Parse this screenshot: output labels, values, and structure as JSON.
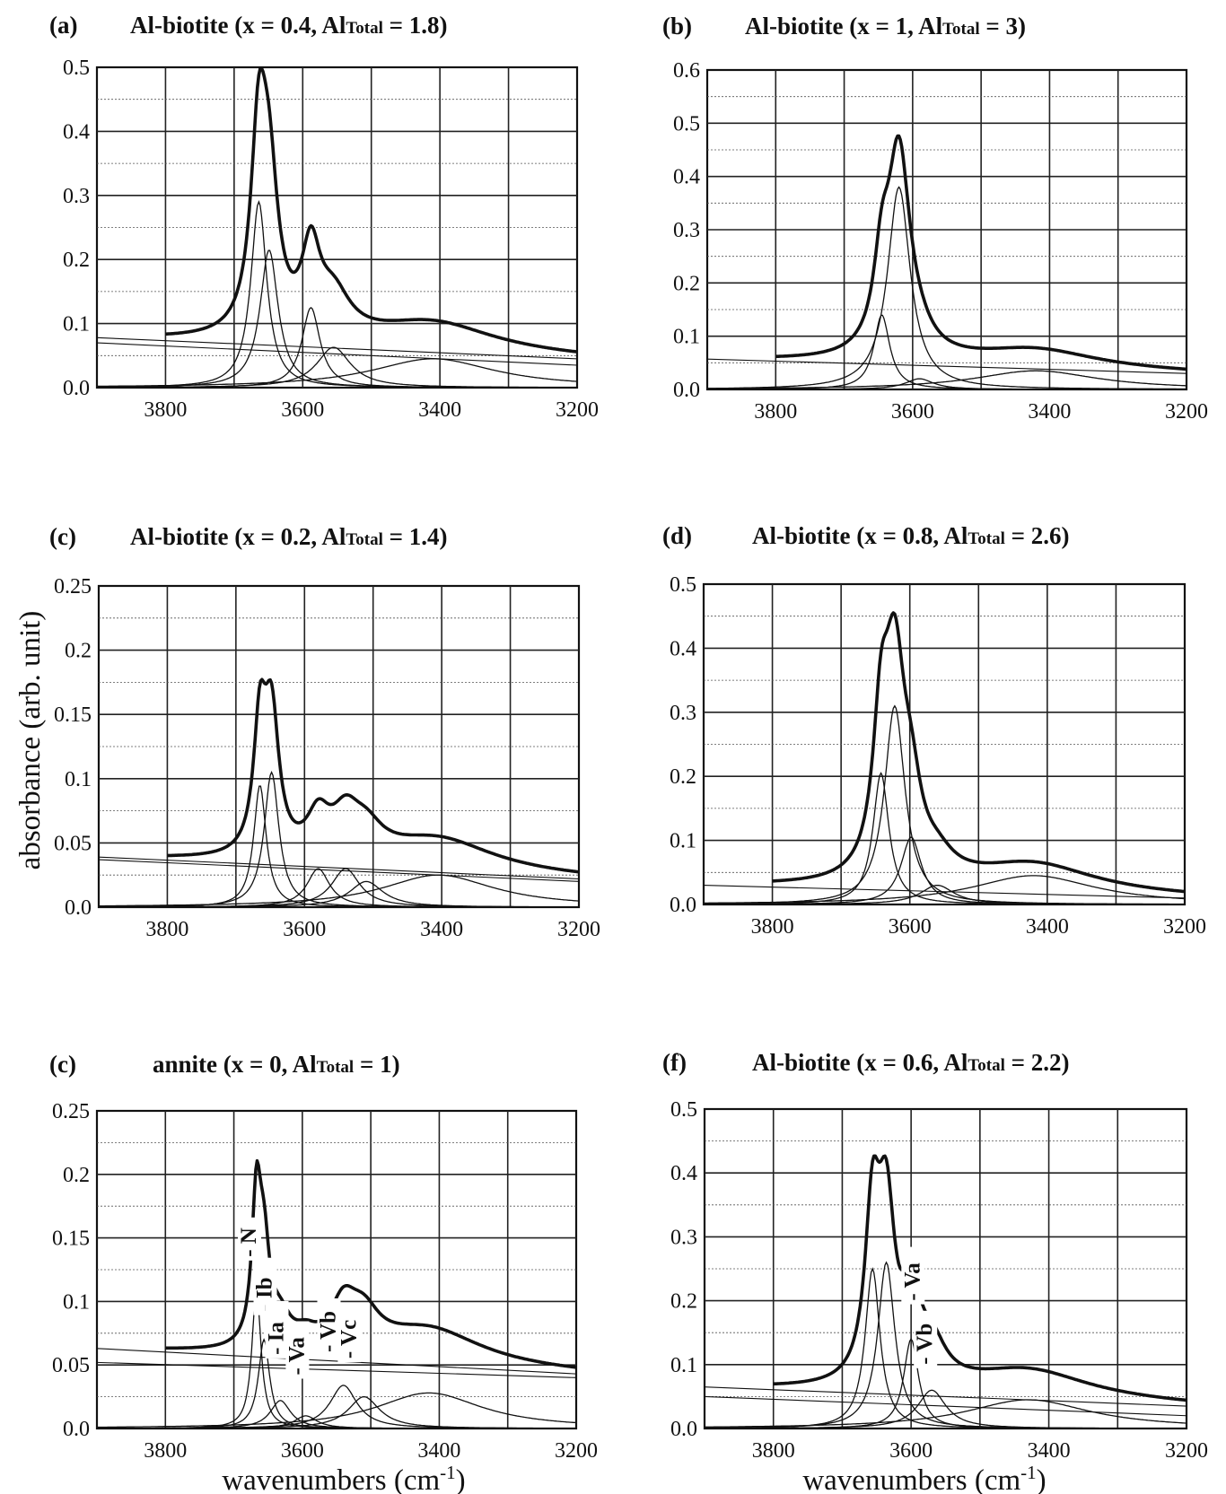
{
  "figure": {
    "ylabel": "absorbance (arb. unit)",
    "xlabel": "wavenumbers (cm",
    "xlabel_sup": "-1",
    "xlabel_close": ")"
  },
  "chart_data": [
    {
      "id": "a",
      "letter": "(a)",
      "title": "Al-biotite (x = 0.4, Al",
      "title_sub": "Total",
      "title_tail": " = 1.8)",
      "type": "line",
      "xlim": [
        3900,
        3200
      ],
      "ylim": [
        0,
        0.5
      ],
      "xticks": [
        3800,
        3600,
        3400,
        3200
      ],
      "yticks": [
        0.0,
        0.1,
        0.2,
        0.3,
        0.4,
        0.5
      ],
      "ytick_labels": [
        "0.0",
        "0.1",
        "0.2",
        "0.3",
        "0.4",
        "0.5"
      ],
      "measured_start": 3800,
      "baselines": [
        {
          "x": [
            3900,
            3200
          ],
          "y": [
            0.078,
            0.045
          ]
        },
        {
          "x": [
            3900,
            3200
          ],
          "y": [
            0.07,
            0.035
          ]
        }
      ],
      "bands": [
        {
          "center": 3664,
          "height": 0.29,
          "width": 14
        },
        {
          "center": 3649,
          "height": 0.215,
          "width": 16
        },
        {
          "center": 3588,
          "height": 0.125,
          "width": 16
        },
        {
          "center": 3555,
          "height": 0.063,
          "width": 30
        },
        {
          "center": 3410,
          "height": 0.045,
          "width": 110
        }
      ],
      "peak_labels": []
    },
    {
      "id": "b",
      "letter": "(b)",
      "title": "Al-biotite (x = 1, Al",
      "title_sub": "Total",
      "title_tail": " = 3)",
      "type": "line",
      "xlim": [
        3900,
        3200
      ],
      "ylim": [
        0,
        0.6
      ],
      "xticks": [
        3800,
        3600,
        3400,
        3200
      ],
      "yticks": [
        0.0,
        0.1,
        0.2,
        0.3,
        0.4,
        0.5,
        0.6
      ],
      "ytick_labels": [
        "0.0",
        "0.1",
        "0.2",
        "0.3",
        "0.4",
        "0.5",
        "0.6"
      ],
      "measured_start": 3800,
      "baselines": [
        {
          "x": [
            3900,
            3200
          ],
          "y": [
            0.057,
            0.03
          ]
        }
      ],
      "bands": [
        {
          "center": 3645,
          "height": 0.14,
          "width": 14
        },
        {
          "center": 3620,
          "height": 0.38,
          "width": 20
        },
        {
          "center": 3590,
          "height": 0.02,
          "width": 25
        },
        {
          "center": 3420,
          "height": 0.035,
          "width": 110
        }
      ],
      "peak_labels": []
    },
    {
      "id": "c",
      "letter": "(c)",
      "title": "Al-biotite (x = 0.2, Al",
      "title_sub": "Total",
      "title_tail": " = 1.4)",
      "type": "line",
      "xlim": [
        3900,
        3200
      ],
      "ylim": [
        0,
        0.25
      ],
      "xticks": [
        3800,
        3600,
        3400,
        3200
      ],
      "yticks": [
        0.0,
        0.05,
        0.1,
        0.15,
        0.2,
        0.25
      ],
      "ytick_labels": [
        "0.0",
        "0.05",
        "0.1",
        "0.15",
        "0.2",
        "0.25"
      ],
      "measured_start": 3800,
      "baselines": [
        {
          "x": [
            3900,
            3200
          ],
          "y": [
            0.039,
            0.022
          ]
        },
        {
          "x": [
            3900,
            3200
          ],
          "y": [
            0.037,
            0.02
          ]
        }
      ],
      "bands": [
        {
          "center": 3665,
          "height": 0.095,
          "width": 11
        },
        {
          "center": 3648,
          "height": 0.105,
          "width": 13
        },
        {
          "center": 3580,
          "height": 0.03,
          "width": 20
        },
        {
          "center": 3540,
          "height": 0.03,
          "width": 25
        },
        {
          "center": 3510,
          "height": 0.02,
          "width": 30
        },
        {
          "center": 3405,
          "height": 0.025,
          "width": 100
        }
      ],
      "peak_labels": []
    },
    {
      "id": "d",
      "letter": "(d)",
      "title": "Al-biotite (x = 0.8, Al",
      "title_sub": "Total",
      "title_tail": " = 2.6)",
      "type": "line",
      "xlim": [
        3900,
        3200
      ],
      "ylim": [
        0,
        0.5
      ],
      "xticks": [
        3800,
        3600,
        3400,
        3200
      ],
      "yticks": [
        0.0,
        0.1,
        0.2,
        0.3,
        0.4,
        0.5
      ],
      "ytick_labels": [
        "0.0",
        "0.1",
        "0.2",
        "0.3",
        "0.4",
        "0.5"
      ],
      "measured_start": 3800,
      "baselines": [
        {
          "x": [
            3900,
            3200
          ],
          "y": [
            0.03,
            0.01
          ]
        }
      ],
      "bands": [
        {
          "center": 3642,
          "height": 0.205,
          "width": 14
        },
        {
          "center": 3622,
          "height": 0.31,
          "width": 18
        },
        {
          "center": 3598,
          "height": 0.105,
          "width": 18
        },
        {
          "center": 3560,
          "height": 0.03,
          "width": 30
        },
        {
          "center": 3420,
          "height": 0.045,
          "width": 110
        }
      ],
      "peak_labels": []
    },
    {
      "id": "e",
      "letter": "(c)",
      "title": "annite (x = 0, Al",
      "title_sub": "Total",
      "title_tail": " = 1)",
      "type": "line",
      "xlim": [
        3900,
        3200
      ],
      "ylim": [
        0,
        0.25
      ],
      "xticks": [
        3800,
        3600,
        3400,
        3200
      ],
      "yticks": [
        0.0,
        0.05,
        0.1,
        0.15,
        0.2,
        0.25
      ],
      "ytick_labels": [
        "0.0",
        "0.05",
        "0.1",
        "0.15",
        "0.2",
        "0.25"
      ],
      "measured_start": 3800,
      "baselines": [
        {
          "x": [
            3900,
            3200
          ],
          "y": [
            0.063,
            0.043
          ]
        },
        {
          "x": [
            3900,
            3200
          ],
          "y": [
            0.052,
            0.04
          ]
        }
      ],
      "bands": [
        {
          "center": 3667,
          "height": 0.11,
          "width": 8
        },
        {
          "center": 3656,
          "height": 0.07,
          "width": 10
        },
        {
          "center": 3632,
          "height": 0.022,
          "width": 18
        },
        {
          "center": 3595,
          "height": 0.01,
          "width": 20
        },
        {
          "center": 3540,
          "height": 0.034,
          "width": 24
        },
        {
          "center": 3510,
          "height": 0.025,
          "width": 28
        },
        {
          "center": 3415,
          "height": 0.028,
          "width": 95
        }
      ],
      "peak_labels": [
        {
          "text": "- N",
          "x": 3668,
          "y": 0.135
        },
        {
          "text": "- Ib",
          "x": 3645,
          "y": 0.092
        },
        {
          "text": "- Ia",
          "x": 3628,
          "y": 0.058
        },
        {
          "text": "- Va",
          "x": 3598,
          "y": 0.042
        },
        {
          "text": "- Vb",
          "x": 3552,
          "y": 0.06
        },
        {
          "text": "- Vc",
          "x": 3522,
          "y": 0.055
        }
      ]
    },
    {
      "id": "f",
      "letter": "(f)",
      "title": "Al-biotite (x = 0.6, Al",
      "title_sub": "Total",
      "title_tail": " = 2.2)",
      "type": "line",
      "xlim": [
        3900,
        3200
      ],
      "ylim": [
        0,
        0.5
      ],
      "xticks": [
        3800,
        3600,
        3400,
        3200
      ],
      "yticks": [
        0.0,
        0.1,
        0.2,
        0.3,
        0.4,
        0.5
      ],
      "ytick_labels": [
        "0.0",
        "0.1",
        "0.2",
        "0.3",
        "0.4",
        "0.5"
      ],
      "measured_start": 3800,
      "baselines": [
        {
          "x": [
            3900,
            3200
          ],
          "y": [
            0.065,
            0.035
          ]
        },
        {
          "x": [
            3900,
            3200
          ],
          "y": [
            0.05,
            0.02
          ]
        }
      ],
      "bands": [
        {
          "center": 3656,
          "height": 0.25,
          "width": 13
        },
        {
          "center": 3636,
          "height": 0.26,
          "width": 15
        },
        {
          "center": 3600,
          "height": 0.14,
          "width": 13
        },
        {
          "center": 3570,
          "height": 0.06,
          "width": 25
        },
        {
          "center": 3430,
          "height": 0.045,
          "width": 110
        }
      ],
      "peak_labels": [
        {
          "text": "- Va",
          "x": 3588,
          "y": 0.2
        },
        {
          "text": "- Vb",
          "x": 3570,
          "y": 0.1
        }
      ]
    }
  ]
}
